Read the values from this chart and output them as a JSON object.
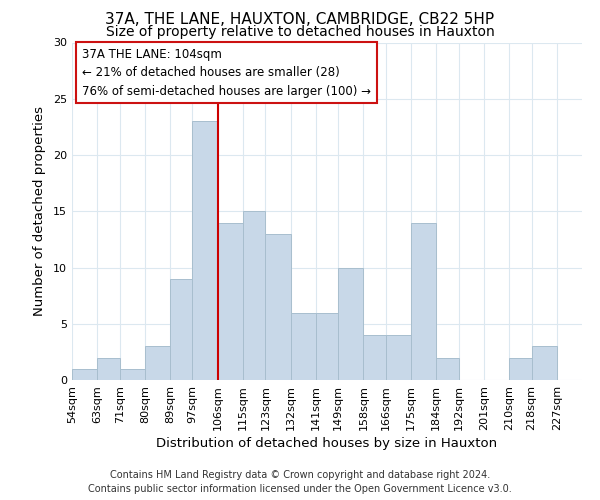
{
  "title": "37A, THE LANE, HAUXTON, CAMBRIDGE, CB22 5HP",
  "subtitle": "Size of property relative to detached houses in Hauxton",
  "xlabel": "Distribution of detached houses by size in Hauxton",
  "ylabel": "Number of detached properties",
  "bar_color": "#c8d8e8",
  "bar_edge_color": "#a8bece",
  "vline_x": 106,
  "vline_color": "#cc0000",
  "bins": [
    54,
    63,
    71,
    80,
    89,
    97,
    106,
    115,
    123,
    132,
    141,
    149,
    158,
    166,
    175,
    184,
    192,
    201,
    210,
    218,
    227,
    236
  ],
  "counts": [
    1,
    2,
    1,
    3,
    9,
    23,
    14,
    15,
    13,
    6,
    6,
    10,
    4,
    4,
    14,
    2,
    0,
    0,
    2,
    3,
    0
  ],
  "tick_labels": [
    "54sqm",
    "63sqm",
    "71sqm",
    "80sqm",
    "89sqm",
    "97sqm",
    "106sqm",
    "115sqm",
    "123sqm",
    "132sqm",
    "141sqm",
    "149sqm",
    "158sqm",
    "166sqm",
    "175sqm",
    "184sqm",
    "192sqm",
    "201sqm",
    "210sqm",
    "218sqm",
    "227sqm"
  ],
  "ylim": [
    0,
    30
  ],
  "yticks": [
    0,
    5,
    10,
    15,
    20,
    25,
    30
  ],
  "annotation_line1": "37A THE LANE: 104sqm",
  "annotation_line2": "← 21% of detached houses are smaller (28)",
  "annotation_line3": "76% of semi-detached houses are larger (100) →",
  "footer_line1": "Contains HM Land Registry data © Crown copyright and database right 2024.",
  "footer_line2": "Contains public sector information licensed under the Open Government Licence v3.0.",
  "background_color": "#ffffff",
  "grid_color": "#dce8f0",
  "title_fontsize": 11,
  "subtitle_fontsize": 10,
  "axis_label_fontsize": 9.5,
  "tick_fontsize": 8,
  "annotation_fontsize": 8.5,
  "footer_fontsize": 7
}
